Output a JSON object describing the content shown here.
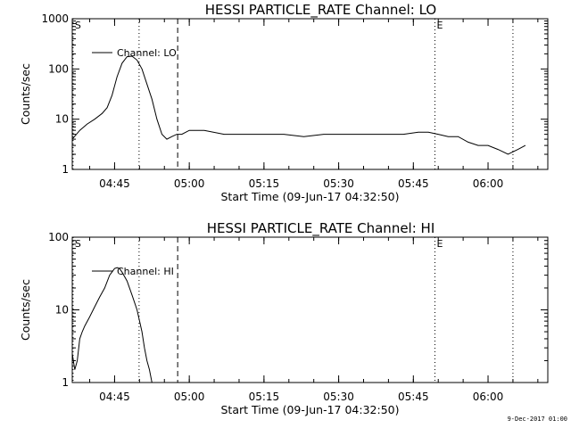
{
  "footer": {
    "stamp": "9-Dec-2017 01:00"
  },
  "chart_data": [
    {
      "type": "line",
      "title": "HESSI PARTICLE_RATE Channel: LO",
      "xlabel": "Start Time (09-Jun-17 04:32:50)",
      "ylabel": "Counts/sec",
      "y_scale": "log",
      "xlim": [
        "04:36:30",
        "06:12:00"
      ],
      "ylim": [
        1,
        1000
      ],
      "x_ticks": [
        "04:45",
        "05:00",
        "05:15",
        "05:30",
        "05:45",
        "06:00"
      ],
      "y_ticks": [
        "1",
        "10",
        "100",
        "1000"
      ],
      "legend": {
        "position": "top-left",
        "entries": [
          "Channel: LO"
        ]
      },
      "markers": [
        {
          "label": "S",
          "x": "04:36:40",
          "style": "dotted"
        },
        {
          "label": "",
          "x": "04:49:55",
          "style": "dotted"
        },
        {
          "label": "",
          "x": "04:57:40",
          "style": "dashed"
        },
        {
          "label": "E",
          "x": "05:49:20",
          "style": "dotted"
        },
        {
          "label": "",
          "x": "06:05:00",
          "style": "dotted"
        }
      ],
      "series": [
        {
          "name": "Channel: LO",
          "x": [
            "04:36:30",
            "04:38:00",
            "04:39:30",
            "04:41:00",
            "04:42:30",
            "04:43:30",
            "04:44:30",
            "04:45:30",
            "04:46:30",
            "04:47:30",
            "04:48:30",
            "04:49:30",
            "04:50:30",
            "04:51:30",
            "04:52:30",
            "04:53:30",
            "04:54:30",
            "04:55:30",
            "04:56:30",
            "04:57:30",
            "04:58:30",
            "05:00:00",
            "05:03:00",
            "05:07:00",
            "05:11:00",
            "05:15:00",
            "05:19:00",
            "05:23:00",
            "05:27:00",
            "05:31:00",
            "05:35:00",
            "05:39:00",
            "05:43:00",
            "05:46:00",
            "05:48:00",
            "05:50:00",
            "05:52:00",
            "05:54:00",
            "05:56:00",
            "05:58:00",
            "06:00:00",
            "06:02:00",
            "06:04:00",
            "06:06:00",
            "06:07:30"
          ],
          "y": [
            4,
            6,
            8,
            10,
            13,
            17,
            30,
            70,
            130,
            175,
            180,
            150,
            100,
            50,
            25,
            10,
            5,
            4,
            4.5,
            5,
            5,
            6,
            6,
            5,
            5,
            5,
            5,
            4.5,
            5,
            5,
            5,
            5,
            5,
            5.5,
            5.5,
            5,
            4.5,
            4.5,
            3.5,
            3,
            3,
            2.5,
            2,
            2.5,
            3
          ]
        }
      ]
    },
    {
      "type": "line",
      "title": "HESSI PARTICLE_RATE Channel: HI",
      "xlabel": "Start Time (09-Jun-17 04:32:50)",
      "ylabel": "Counts/sec",
      "y_scale": "log",
      "xlim": [
        "04:36:30",
        "06:12:00"
      ],
      "ylim": [
        1,
        100
      ],
      "x_ticks": [
        "04:45",
        "05:00",
        "05:15",
        "05:30",
        "05:45",
        "06:00"
      ],
      "y_ticks": [
        "1",
        "10",
        "100"
      ],
      "legend": {
        "position": "top-left",
        "entries": [
          "Channel: HI"
        ]
      },
      "markers": [
        {
          "label": "S",
          "x": "04:36:40",
          "style": "dotted"
        },
        {
          "label": "",
          "x": "04:49:55",
          "style": "dotted"
        },
        {
          "label": "",
          "x": "04:57:40",
          "style": "dashed"
        },
        {
          "label": "E",
          "x": "05:49:20",
          "style": "dotted"
        },
        {
          "label": "",
          "x": "06:05:00",
          "style": "dotted"
        }
      ],
      "series": [
        {
          "name": "Channel: HI",
          "x": [
            "04:36:30",
            "04:37:00",
            "04:37:30",
            "04:38:00",
            "04:38:30",
            "04:39:00",
            "04:40:00",
            "04:41:00",
            "04:42:00",
            "04:43:00",
            "04:44:00",
            "04:45:00",
            "04:45:30",
            "04:46:00",
            "04:46:30",
            "04:47:30",
            "04:48:30",
            "04:49:30",
            "04:50:30",
            "04:51:00",
            "04:51:30",
            "04:52:00",
            "04:52:30"
          ],
          "y": [
            2.5,
            1.5,
            2,
            4,
            5,
            6,
            8,
            11,
            15,
            20,
            30,
            37,
            38,
            37,
            33,
            25,
            16,
            10,
            5,
            3,
            2,
            1.5,
            1
          ]
        }
      ]
    }
  ]
}
